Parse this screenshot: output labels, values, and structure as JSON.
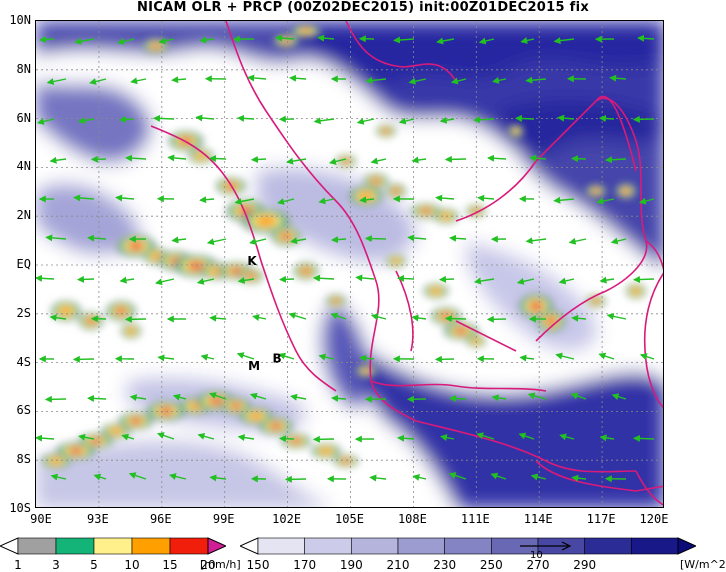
{
  "title": "NICAM OLR + PRCP (00Z02DEC2015) init:00Z01DEC2015 fix",
  "map": {
    "lat_labels": [
      "10N",
      "8N",
      "6N",
      "4N",
      "2N",
      "EQ",
      "2S",
      "4S",
      "6S",
      "8S",
      "10S"
    ],
    "lon_labels": [
      "90E",
      "93E",
      "96E",
      "99E",
      "102E",
      "105E",
      "108E",
      "111E",
      "114E",
      "117E",
      "120E"
    ],
    "extent": {
      "lon_min": 90,
      "lon_max": 120,
      "lat_min": -10,
      "lat_max": 10
    },
    "markers": [
      {
        "label": "K",
        "lon": 100.3,
        "lat": 0.0
      },
      {
        "label": "M",
        "lon": 100.4,
        "lat": -4.3
      },
      {
        "label": "B",
        "lon": 101.5,
        "lat": -4.0
      }
    ],
    "gridlines": "dotted",
    "coastline_color": "#d81b7a",
    "wind_vector_color": "#22c022",
    "olr_cloud_color": "#1a1aa8"
  },
  "precip_colorbar": {
    "levels": [
      "1",
      "3",
      "5",
      "10",
      "15",
      "20"
    ],
    "unit": "[mm/h]",
    "colors": [
      "#ffffff",
      "#a0a0a0",
      "#14b478",
      "#fff08c",
      "#ffa000",
      "#f01e0a",
      "#d21e96"
    ]
  },
  "olr_colorbar": {
    "levels": [
      "150",
      "170",
      "190",
      "210",
      "230",
      "250",
      "270",
      "290"
    ],
    "unit": "[W/m^2]",
    "vector_label": "10",
    "colors": [
      "#ffffff",
      "#e4e4f2",
      "#ccccea",
      "#b4b4dc",
      "#9c9cd0",
      "#8484c4",
      "#6868b4",
      "#4848a4",
      "#2c2c96",
      "#181888",
      "#0c0c78"
    ]
  }
}
